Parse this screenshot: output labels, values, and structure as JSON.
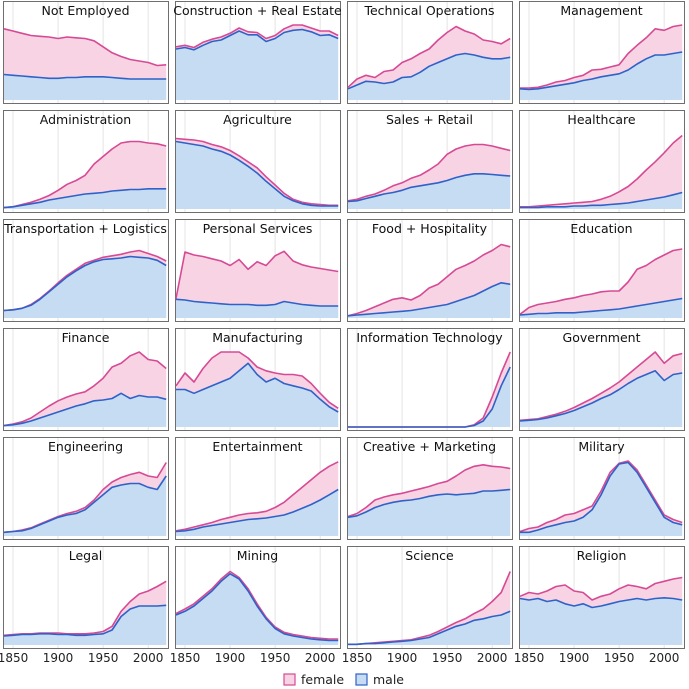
{
  "chart_data": {
    "type": "area",
    "x_ticks": [
      1850,
      1900,
      1950,
      2000
    ],
    "xlim": [
      1840,
      2022
    ],
    "legend": [
      {
        "name": "female",
        "fill": "#f7d3e3",
        "stroke": "#d64a95"
      },
      {
        "name": "male",
        "fill": "#c6dcf3",
        "stroke": "#2f62c8"
      }
    ],
    "x": [
      1840,
      1850,
      1860,
      1870,
      1880,
      1890,
      1900,
      1910,
      1920,
      1930,
      1940,
      1950,
      1960,
      1970,
      1980,
      1990,
      2000,
      2010,
      2020
    ],
    "panels": [
      {
        "title": "Not Employed",
        "male": [
          0.34,
          0.33,
          0.32,
          0.31,
          0.3,
          0.29,
          0.29,
          0.3,
          0.3,
          0.31,
          0.31,
          0.31,
          0.3,
          0.29,
          0.28,
          0.28,
          0.28,
          0.28,
          0.28
        ],
        "total": [
          0.95,
          0.92,
          0.89,
          0.86,
          0.85,
          0.84,
          0.82,
          0.84,
          0.83,
          0.82,
          0.79,
          0.71,
          0.63,
          0.58,
          0.54,
          0.52,
          0.5,
          0.46,
          0.47
        ]
      },
      {
        "title": "Construction + Real Estate",
        "male": [
          0.68,
          0.7,
          0.67,
          0.73,
          0.78,
          0.8,
          0.86,
          0.92,
          0.87,
          0.87,
          0.78,
          0.82,
          0.9,
          0.93,
          0.94,
          0.91,
          0.86,
          0.87,
          0.82
        ],
        "total": [
          0.71,
          0.73,
          0.7,
          0.77,
          0.81,
          0.84,
          0.89,
          0.96,
          0.91,
          0.9,
          0.82,
          0.86,
          0.95,
          1.0,
          1.0,
          0.96,
          0.92,
          0.92,
          0.86
        ]
      },
      {
        "title": "Technical Operations",
        "male": [
          0.15,
          0.2,
          0.25,
          0.24,
          0.22,
          0.24,
          0.3,
          0.31,
          0.37,
          0.45,
          0.5,
          0.55,
          0.6,
          0.62,
          0.6,
          0.57,
          0.55,
          0.55,
          0.57
        ],
        "total": [
          0.17,
          0.28,
          0.33,
          0.3,
          0.38,
          0.4,
          0.5,
          0.55,
          0.62,
          0.68,
          0.8,
          0.9,
          0.98,
          0.92,
          0.88,
          0.8,
          0.78,
          0.75,
          0.82
        ]
      },
      {
        "title": "Management",
        "male": [
          0.15,
          0.14,
          0.15,
          0.17,
          0.19,
          0.21,
          0.23,
          0.26,
          0.28,
          0.31,
          0.33,
          0.35,
          0.4,
          0.48,
          0.55,
          0.6,
          0.6,
          0.62,
          0.64
        ],
        "total": [
          0.16,
          0.16,
          0.17,
          0.2,
          0.24,
          0.26,
          0.3,
          0.33,
          0.4,
          0.41,
          0.44,
          0.47,
          0.62,
          0.73,
          0.83,
          0.95,
          0.93,
          0.98,
          1.0
        ]
      },
      {
        "title": "Administration",
        "male": [
          0.02,
          0.03,
          0.05,
          0.07,
          0.09,
          0.12,
          0.14,
          0.16,
          0.18,
          0.2,
          0.21,
          0.22,
          0.24,
          0.25,
          0.26,
          0.26,
          0.27,
          0.27,
          0.27
        ],
        "total": [
          0.02,
          0.03,
          0.06,
          0.09,
          0.13,
          0.18,
          0.25,
          0.33,
          0.38,
          0.45,
          0.6,
          0.7,
          0.8,
          0.88,
          0.9,
          0.9,
          0.88,
          0.87,
          0.84
        ]
      },
      {
        "title": "Agriculture",
        "male": [
          0.9,
          0.88,
          0.86,
          0.84,
          0.8,
          0.77,
          0.72,
          0.65,
          0.57,
          0.48,
          0.37,
          0.27,
          0.17,
          0.11,
          0.07,
          0.05,
          0.04,
          0.04,
          0.04
        ],
        "total": [
          0.94,
          0.93,
          0.92,
          0.9,
          0.86,
          0.83,
          0.78,
          0.71,
          0.63,
          0.55,
          0.43,
          0.32,
          0.21,
          0.13,
          0.09,
          0.07,
          0.06,
          0.05,
          0.05
        ]
      },
      {
        "title": "Sales + Retail",
        "male": [
          0.1,
          0.11,
          0.14,
          0.17,
          0.2,
          0.22,
          0.25,
          0.29,
          0.31,
          0.33,
          0.35,
          0.38,
          0.42,
          0.45,
          0.47,
          0.47,
          0.46,
          0.45,
          0.44
        ],
        "total": [
          0.11,
          0.13,
          0.17,
          0.2,
          0.25,
          0.31,
          0.35,
          0.41,
          0.45,
          0.52,
          0.6,
          0.73,
          0.8,
          0.84,
          0.86,
          0.86,
          0.84,
          0.81,
          0.78
        ]
      },
      {
        "title": "Healthcare",
        "male": [
          0.02,
          0.02,
          0.02,
          0.03,
          0.03,
          0.03,
          0.04,
          0.04,
          0.05,
          0.05,
          0.06,
          0.07,
          0.08,
          0.1,
          0.12,
          0.14,
          0.16,
          0.19,
          0.22
        ],
        "total": [
          0.03,
          0.03,
          0.04,
          0.05,
          0.06,
          0.07,
          0.08,
          0.09,
          0.1,
          0.13,
          0.17,
          0.23,
          0.3,
          0.4,
          0.52,
          0.63,
          0.75,
          0.88,
          0.98
        ]
      },
      {
        "title": "Transportation + Logistics",
        "male": [
          0.1,
          0.11,
          0.13,
          0.17,
          0.25,
          0.35,
          0.45,
          0.55,
          0.63,
          0.7,
          0.75,
          0.78,
          0.79,
          0.8,
          0.82,
          0.81,
          0.8,
          0.77,
          0.7
        ],
        "total": [
          0.1,
          0.11,
          0.13,
          0.18,
          0.26,
          0.36,
          0.47,
          0.57,
          0.65,
          0.73,
          0.77,
          0.81,
          0.83,
          0.85,
          0.88,
          0.9,
          0.86,
          0.82,
          0.76
        ]
      },
      {
        "title": "Personal Services",
        "male": [
          0.25,
          0.24,
          0.22,
          0.21,
          0.2,
          0.19,
          0.18,
          0.18,
          0.18,
          0.17,
          0.17,
          0.18,
          0.22,
          0.2,
          0.18,
          0.17,
          0.16,
          0.16,
          0.16
        ],
        "total": [
          0.26,
          0.88,
          0.84,
          0.82,
          0.79,
          0.76,
          0.7,
          0.78,
          0.65,
          0.75,
          0.7,
          0.83,
          0.89,
          0.76,
          0.71,
          0.68,
          0.66,
          0.64,
          0.62
        ]
      },
      {
        "title": "Food + Hospitality",
        "male": [
          0.03,
          0.04,
          0.05,
          0.06,
          0.07,
          0.08,
          0.09,
          0.1,
          0.12,
          0.14,
          0.16,
          0.18,
          0.22,
          0.26,
          0.3,
          0.36,
          0.42,
          0.47,
          0.45
        ],
        "total": [
          0.03,
          0.06,
          0.1,
          0.15,
          0.2,
          0.25,
          0.27,
          0.24,
          0.3,
          0.4,
          0.45,
          0.55,
          0.65,
          0.7,
          0.76,
          0.84,
          0.9,
          0.98,
          0.95
        ]
      },
      {
        "title": "Education",
        "male": [
          0.04,
          0.05,
          0.06,
          0.06,
          0.07,
          0.07,
          0.07,
          0.08,
          0.09,
          0.1,
          0.11,
          0.12,
          0.14,
          0.16,
          0.18,
          0.2,
          0.22,
          0.24,
          0.26
        ],
        "total": [
          0.05,
          0.14,
          0.18,
          0.2,
          0.22,
          0.25,
          0.27,
          0.3,
          0.32,
          0.35,
          0.36,
          0.36,
          0.48,
          0.65,
          0.7,
          0.78,
          0.84,
          0.9,
          0.92
        ]
      },
      {
        "title": "Finance",
        "male": [
          0.02,
          0.03,
          0.05,
          0.08,
          0.12,
          0.16,
          0.2,
          0.24,
          0.28,
          0.31,
          0.35,
          0.36,
          0.38,
          0.45,
          0.38,
          0.42,
          0.4,
          0.4,
          0.37
        ],
        "total": [
          0.02,
          0.04,
          0.07,
          0.12,
          0.2,
          0.28,
          0.35,
          0.4,
          0.44,
          0.47,
          0.55,
          0.65,
          0.8,
          0.85,
          0.95,
          1.0,
          0.9,
          0.88,
          0.78
        ]
      },
      {
        "title": "Manufacturing",
        "male": [
          0.5,
          0.5,
          0.45,
          0.5,
          0.55,
          0.6,
          0.65,
          0.75,
          0.85,
          0.7,
          0.6,
          0.65,
          0.58,
          0.55,
          0.52,
          0.48,
          0.37,
          0.27,
          0.2
        ],
        "total": [
          0.55,
          0.72,
          0.6,
          0.78,
          0.92,
          1.0,
          1.0,
          1.0,
          0.92,
          0.8,
          0.75,
          0.72,
          0.7,
          0.7,
          0.68,
          0.58,
          0.45,
          0.33,
          0.25
        ]
      },
      {
        "title": "Information Technology",
        "male": [
          0,
          0,
          0,
          0,
          0,
          0,
          0,
          0,
          0,
          0,
          0,
          0,
          0,
          0,
          0.02,
          0.08,
          0.24,
          0.55,
          0.8
        ],
        "total": [
          0,
          0,
          0,
          0,
          0,
          0,
          0,
          0,
          0,
          0,
          0,
          0,
          0,
          0,
          0.03,
          0.12,
          0.4,
          0.72,
          1.0
        ]
      },
      {
        "title": "Government",
        "male": [
          0.08,
          0.09,
          0.1,
          0.12,
          0.15,
          0.18,
          0.22,
          0.27,
          0.32,
          0.38,
          0.43,
          0.5,
          0.58,
          0.65,
          0.7,
          0.75,
          0.62,
          0.7,
          0.72
        ],
        "total": [
          0.09,
          0.1,
          0.11,
          0.14,
          0.17,
          0.21,
          0.26,
          0.32,
          0.38,
          0.45,
          0.52,
          0.6,
          0.7,
          0.8,
          0.9,
          1.0,
          0.85,
          0.95,
          0.98
        ]
      },
      {
        "title": "Engineering",
        "male": [
          0.05,
          0.06,
          0.07,
          0.1,
          0.15,
          0.2,
          0.25,
          0.28,
          0.3,
          0.35,
          0.45,
          0.55,
          0.65,
          0.68,
          0.7,
          0.7,
          0.65,
          0.62,
          0.8
        ],
        "total": [
          0.05,
          0.06,
          0.08,
          0.11,
          0.16,
          0.21,
          0.26,
          0.3,
          0.33,
          0.38,
          0.48,
          0.62,
          0.72,
          0.78,
          0.82,
          0.85,
          0.8,
          0.78,
          0.98
        ]
      },
      {
        "title": "Entertainment",
        "male": [
          0.06,
          0.07,
          0.09,
          0.12,
          0.14,
          0.16,
          0.18,
          0.2,
          0.22,
          0.23,
          0.24,
          0.26,
          0.28,
          0.32,
          0.37,
          0.42,
          0.48,
          0.55,
          0.62
        ],
        "total": [
          0.07,
          0.09,
          0.12,
          0.15,
          0.18,
          0.22,
          0.25,
          0.28,
          0.3,
          0.31,
          0.33,
          0.38,
          0.45,
          0.55,
          0.65,
          0.75,
          0.85,
          0.93,
          0.99
        ]
      },
      {
        "title": "Creative + Marketing",
        "male": [
          0.25,
          0.27,
          0.32,
          0.38,
          0.42,
          0.45,
          0.47,
          0.48,
          0.5,
          0.53,
          0.55,
          0.56,
          0.55,
          0.56,
          0.57,
          0.6,
          0.6,
          0.61,
          0.62
        ],
        "total": [
          0.26,
          0.3,
          0.38,
          0.48,
          0.52,
          0.55,
          0.57,
          0.6,
          0.63,
          0.66,
          0.7,
          0.73,
          0.8,
          0.88,
          0.93,
          0.95,
          0.93,
          0.92,
          0.9
        ]
      },
      {
        "title": "Military",
        "male": [
          0.05,
          0.05,
          0.08,
          0.12,
          0.15,
          0.18,
          0.2,
          0.25,
          0.35,
          0.55,
          0.8,
          0.96,
          0.98,
          0.85,
          0.65,
          0.45,
          0.25,
          0.18,
          0.15
        ],
        "total": [
          0.06,
          0.1,
          0.12,
          0.18,
          0.22,
          0.28,
          0.3,
          0.35,
          0.4,
          0.6,
          0.85,
          0.97,
          1.0,
          0.88,
          0.68,
          0.48,
          0.28,
          0.22,
          0.18
        ]
      },
      {
        "title": "Legal",
        "male": [
          0.12,
          0.13,
          0.14,
          0.14,
          0.15,
          0.15,
          0.14,
          0.14,
          0.13,
          0.13,
          0.14,
          0.15,
          0.2,
          0.38,
          0.48,
          0.52,
          0.52,
          0.52,
          0.53
        ],
        "total": [
          0.13,
          0.14,
          0.15,
          0.15,
          0.16,
          0.16,
          0.16,
          0.15,
          0.15,
          0.15,
          0.16,
          0.18,
          0.25,
          0.45,
          0.58,
          0.68,
          0.72,
          0.78,
          0.85
        ]
      },
      {
        "title": "Mining",
        "male": [
          0.4,
          0.45,
          0.52,
          0.62,
          0.72,
          0.85,
          0.95,
          0.88,
          0.72,
          0.52,
          0.35,
          0.22,
          0.15,
          0.12,
          0.1,
          0.08,
          0.07,
          0.06,
          0.06
        ],
        "total": [
          0.42,
          0.48,
          0.55,
          0.65,
          0.75,
          0.88,
          0.98,
          0.9,
          0.75,
          0.55,
          0.37,
          0.24,
          0.17,
          0.14,
          0.12,
          0.1,
          0.09,
          0.08,
          0.08
        ]
      },
      {
        "title": "Science",
        "male": [
          0.01,
          0.01,
          0.02,
          0.02,
          0.03,
          0.04,
          0.05,
          0.06,
          0.08,
          0.1,
          0.15,
          0.2,
          0.25,
          0.28,
          0.33,
          0.35,
          0.38,
          0.4,
          0.45
        ],
        "total": [
          0.01,
          0.01,
          0.02,
          0.03,
          0.04,
          0.05,
          0.06,
          0.07,
          0.1,
          0.13,
          0.18,
          0.24,
          0.3,
          0.35,
          0.42,
          0.48,
          0.58,
          0.7,
          0.98
        ]
      },
      {
        "title": "Religion",
        "male": [
          0.62,
          0.6,
          0.62,
          0.58,
          0.6,
          0.55,
          0.52,
          0.55,
          0.5,
          0.52,
          0.55,
          0.58,
          0.6,
          0.62,
          0.6,
          0.62,
          0.63,
          0.62,
          0.6
        ],
        "total": [
          0.65,
          0.7,
          0.68,
          0.72,
          0.78,
          0.8,
          0.72,
          0.7,
          0.6,
          0.65,
          0.68,
          0.75,
          0.8,
          0.78,
          0.75,
          0.82,
          0.85,
          0.88,
          0.9
        ]
      }
    ]
  }
}
